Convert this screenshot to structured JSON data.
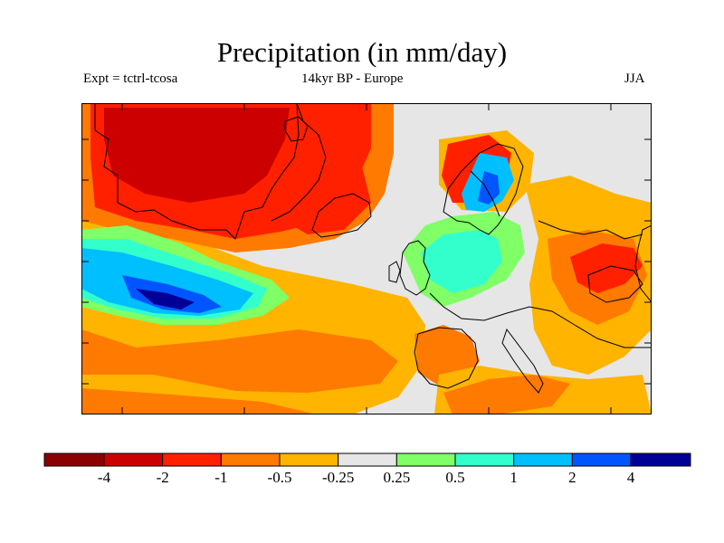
{
  "title": "Precipitation (in mm/day)",
  "subtitle_left": "Expt = tctrl-tcosa",
  "subtitle_center": "14kyr BP - Europe",
  "subtitle_right": "JJA",
  "colorbar": {
    "colors": [
      "#8b0000",
      "#cc0000",
      "#ff2000",
      "#ff7a00",
      "#ffb400",
      "#e6e6e6",
      "#80ff66",
      "#33ffcc",
      "#00bfff",
      "#0055ff",
      "#000096"
    ],
    "labels": [
      "-4",
      "-2",
      "-1",
      "-0.5",
      "-0.25",
      "0.25",
      "0.5",
      "1",
      "2",
      "4"
    ]
  }
}
